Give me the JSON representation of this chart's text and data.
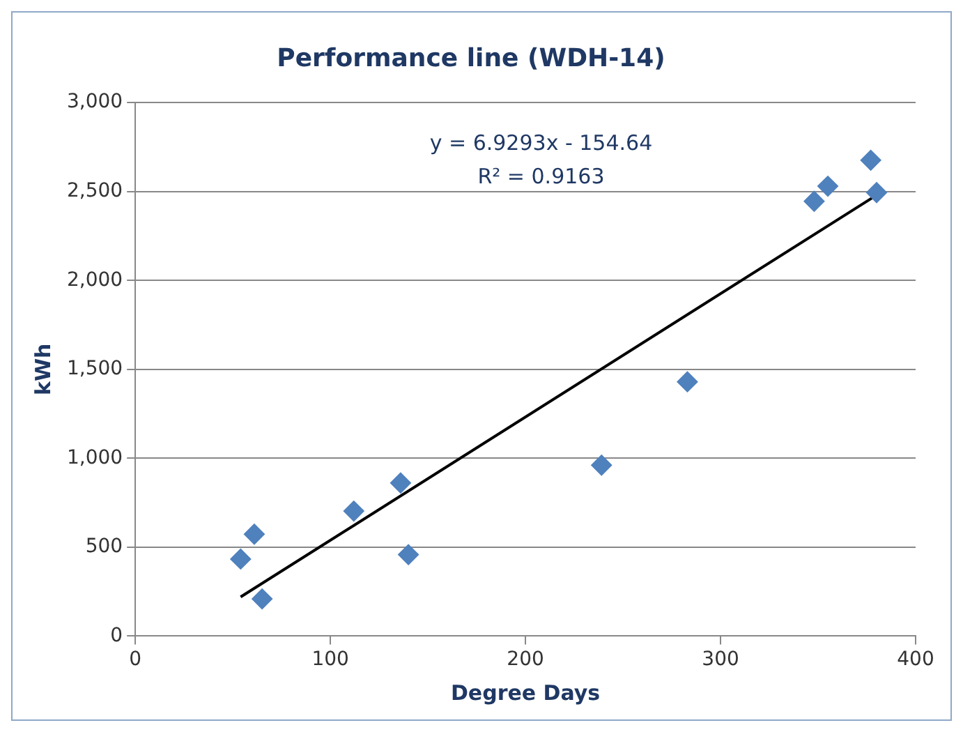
{
  "chart_data": {
    "type": "scatter",
    "title": "Performance line (WDH-14)",
    "xlabel": "Degree Days",
    "ylabel": "kWh",
    "xlim": [
      0,
      400
    ],
    "xticks": [
      0,
      100,
      200,
      300,
      400
    ],
    "ylim": [
      0,
      3000
    ],
    "yticks": [
      {
        "value": 0,
        "label": "0"
      },
      {
        "value": 500,
        "label": "500"
      },
      {
        "value": 1000,
        "label": "1,000"
      },
      {
        "value": 1500,
        "label": "1,500"
      },
      {
        "value": 2000,
        "label": "2,000"
      },
      {
        "value": 2500,
        "label": "2,500"
      },
      {
        "value": 3000,
        "label": "3,000"
      }
    ],
    "grid": "y",
    "legend": false,
    "series": [
      {
        "marker": "diamond",
        "color": "#4f81bd",
        "x": [
          54,
          61,
          65,
          112,
          136,
          140,
          239,
          283,
          348,
          355,
          377,
          380
        ],
        "values": [
          433,
          573,
          209,
          703,
          861,
          458,
          961,
          1430,
          2445,
          2530,
          2676,
          2494
        ]
      },
      {
        "type": "line",
        "marker": "none",
        "color": "#000000",
        "x": [
          54,
          380
        ],
        "values": [
          220,
          2480
        ]
      }
    ],
    "annotations": [
      "y = 6.9293x - 154.64",
      "R² = 0.9163"
    ]
  }
}
